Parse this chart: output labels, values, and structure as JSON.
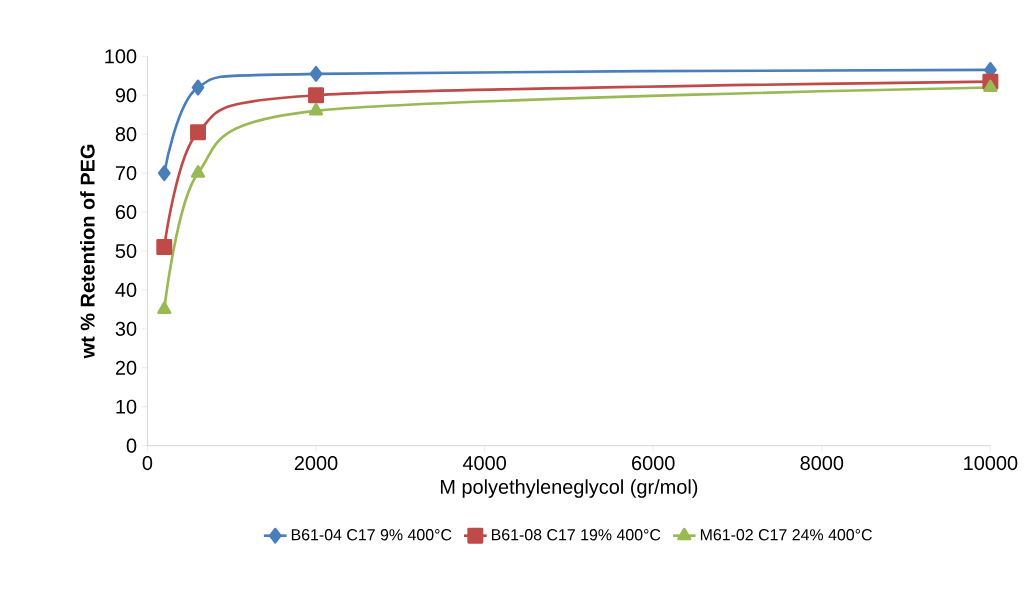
{
  "chart_data": {
    "type": "line",
    "xlabel": "M polyethyleneglycol  (gr/mol)",
    "ylabel": "wt % Retention of PEG",
    "x": [
      200,
      600,
      2000,
      10000
    ],
    "series": [
      {
        "name": "B61-04 C17 9% 400°C",
        "color": "#4a7ebb",
        "marker": "diamond",
        "values": [
          70,
          92,
          95.5,
          96.5
        ]
      },
      {
        "name": "B61-08 C17 19% 400°C",
        "color": "#be4b48",
        "marker": "square",
        "values": [
          51,
          80.5,
          90,
          93.5
        ]
      },
      {
        "name": "M61-02 C17 24% 400°C",
        "color": "#98b954",
        "marker": "triangle",
        "values": [
          35,
          70,
          86,
          92
        ]
      }
    ],
    "xlim": [
      0,
      10000
    ],
    "xticks": [
      0,
      2000,
      4000,
      6000,
      8000,
      10000
    ],
    "ylim": [
      0,
      100
    ],
    "yticks": [
      0,
      10,
      20,
      30,
      40,
      50,
      60,
      70,
      80,
      90,
      100
    ],
    "grid": false,
    "legend": "bottom",
    "line_style": "solid"
  }
}
